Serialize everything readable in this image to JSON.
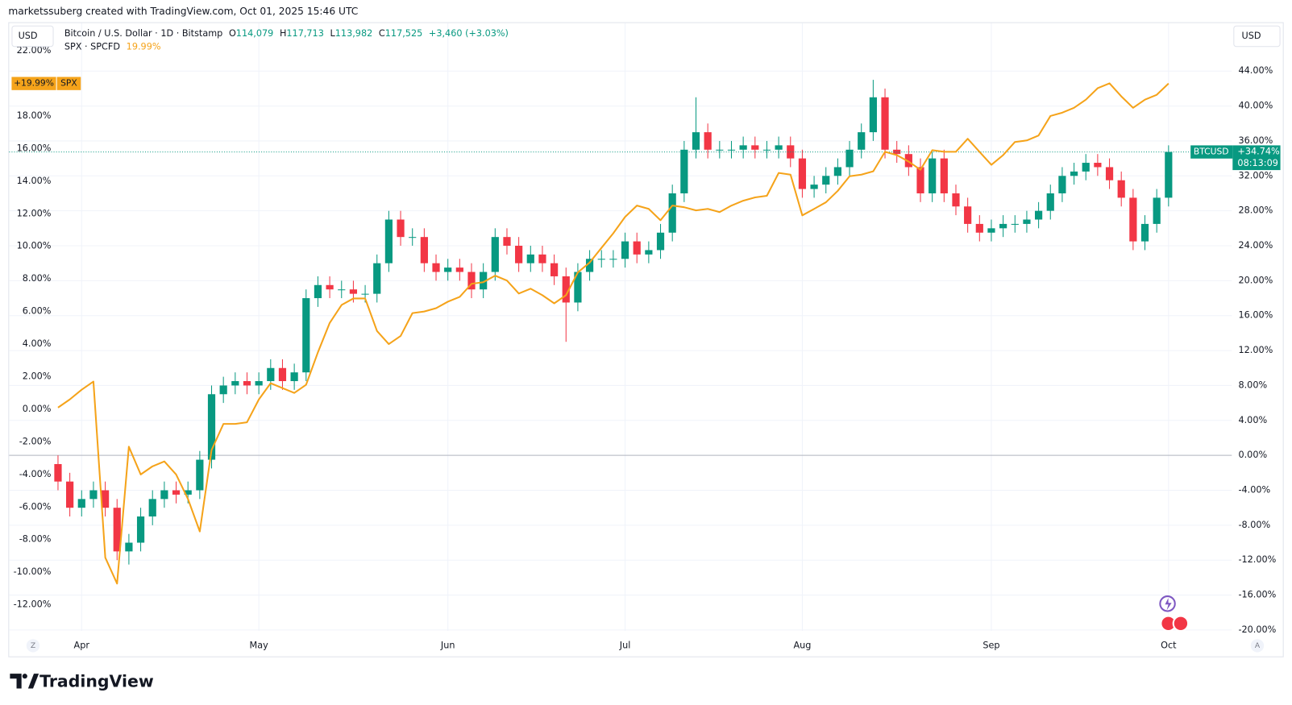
{
  "header": {
    "attribution": "marketssuberg created with TradingView.com, Oct 01, 2025 15:46 UTC"
  },
  "chart_data": {
    "type": "candlestick",
    "categories": [
      null,
      null,
      "Apr",
      null,
      null,
      null,
      null,
      null,
      null,
      null,
      null,
      null,
      null,
      null,
      null,
      null,
      null,
      "May",
      null,
      null,
      null,
      null,
      null,
      null,
      null,
      null,
      null,
      null,
      null,
      null,
      null,
      null,
      null,
      "Jun",
      null,
      null,
      null,
      null,
      null,
      null,
      null,
      null,
      null,
      null,
      null,
      null,
      null,
      null,
      "Jul",
      null,
      null,
      null,
      null,
      null,
      null,
      null,
      null,
      null,
      null,
      null,
      null,
      null,
      null,
      "Aug",
      null,
      null,
      null,
      null,
      null,
      null,
      null,
      null,
      null,
      null,
      null,
      null,
      null,
      null,
      null,
      "Sep",
      null,
      null,
      null,
      null,
      null,
      null,
      null,
      null,
      null,
      null,
      null,
      null,
      null,
      null,
      "Oct"
    ],
    "series": [
      {
        "name": "BTCUSD",
        "type": "candlestick",
        "axis": "y2",
        "up_color": "#089981",
        "down_color": "#f23645",
        "open": [
          -1,
          -3,
          -6,
          -5,
          -4,
          -6,
          -11,
          -10,
          -7,
          -5,
          -4,
          -4.5,
          -4,
          -0.5,
          7,
          8,
          8.5,
          8,
          8.5,
          10,
          8.5,
          9.5,
          18,
          19.5,
          19,
          19,
          18.5,
          18.5,
          22,
          27,
          25,
          25,
          22,
          21,
          21.5,
          21,
          19,
          21,
          25,
          24,
          22,
          23,
          22,
          20.5,
          17.5,
          21,
          22.5,
          22.5,
          22.5,
          24.5,
          23,
          23.5,
          25.5,
          30,
          35,
          37,
          35,
          35,
          35,
          35.5,
          35,
          35,
          35.5,
          34,
          30.5,
          31,
          32,
          33,
          35,
          37,
          41,
          35,
          34.5,
          33,
          30,
          34,
          30,
          28.5,
          26.5,
          25.5,
          26,
          26.5,
          26.5,
          27,
          28,
          30,
          32,
          32.5,
          33.5,
          33,
          31.5,
          29.5,
          24.5,
          26.5,
          29.5
        ],
        "high": [
          0,
          -2,
          -4,
          -3,
          -3,
          -5,
          -9,
          -6,
          -4,
          -3,
          -3,
          -3,
          0.5,
          8,
          9,
          9.5,
          9.5,
          9.5,
          11,
          11,
          10.5,
          19,
          20.5,
          20.5,
          20,
          20,
          19.5,
          23,
          28,
          28,
          26,
          26,
          23,
          22.5,
          22.5,
          22,
          22,
          26,
          26,
          25,
          24,
          24,
          23,
          21.5,
          22,
          23.5,
          23.5,
          23.5,
          25.5,
          25.5,
          24.5,
          26.5,
          31,
          36,
          41,
          38,
          36,
          36,
          36.5,
          36.5,
          36,
          36.5,
          36.5,
          35,
          32,
          33,
          34,
          36,
          38,
          43,
          42,
          36,
          35.5,
          34,
          35,
          35,
          31,
          29.5,
          27.5,
          27,
          27.5,
          27.5,
          28,
          29,
          31,
          33,
          33.5,
          34.5,
          34.5,
          34,
          32.5,
          30.5,
          27.5,
          30.5,
          35.5
        ],
        "low": [
          -4,
          -7,
          -7,
          -6,
          -7,
          -12,
          -12.5,
          -11,
          -8,
          -6,
          -5.5,
          -5.5,
          -5,
          -1.5,
          6,
          7,
          7,
          7,
          7.5,
          7.5,
          7.5,
          8.5,
          17,
          18,
          18,
          17.5,
          17.5,
          17.5,
          21,
          24,
          24,
          21,
          20,
          20,
          20,
          18,
          18,
          20,
          23,
          21,
          21,
          21,
          19.5,
          13,
          16.5,
          20,
          21.5,
          21.5,
          21.5,
          22,
          22,
          22.5,
          24.5,
          29,
          34,
          34,
          34,
          34,
          34,
          34,
          34,
          34,
          33,
          29.5,
          29.5,
          30,
          31,
          32,
          34,
          36,
          34,
          33.5,
          32,
          29,
          29,
          29,
          27.5,
          25.5,
          24.5,
          24.5,
          25,
          25.5,
          25.5,
          26,
          27,
          29,
          31,
          31.5,
          32,
          30.5,
          28.5,
          23.5,
          23.5,
          25.5,
          28.5
        ],
        "close": [
          -3,
          -6,
          -5,
          -4,
          -6,
          -11,
          -10,
          -7,
          -5,
          -4,
          -4.5,
          -4,
          -0.5,
          7,
          8,
          8.5,
          8,
          8.5,
          10,
          8.5,
          9.5,
          18,
          19.5,
          19,
          19,
          18.5,
          18.5,
          22,
          27,
          25,
          25,
          22,
          21,
          21.5,
          21,
          19,
          21,
          25,
          24,
          22,
          23,
          22,
          20.5,
          17.5,
          21,
          22.5,
          22.5,
          22.5,
          24.5,
          23,
          23.5,
          25.5,
          30,
          35,
          37,
          35,
          35,
          35,
          35.5,
          35,
          35,
          35.5,
          34,
          30.5,
          31,
          32,
          33,
          35,
          37,
          41,
          35,
          34.5,
          33,
          30,
          34,
          30,
          28.5,
          26.5,
          25.5,
          26,
          26.5,
          26.5,
          27,
          28,
          30,
          32,
          32.5,
          33.5,
          33,
          31.5,
          29.5,
          24.5,
          26.5,
          29.5,
          34.74
        ],
        "last_label": "+34.74%",
        "countdown": "08:13:09"
      },
      {
        "name": "SPX",
        "type": "line",
        "axis": "y",
        "color": "#f5a31a",
        "values": [
          0.1,
          0.6,
          1.2,
          1.7,
          -9.1,
          -10.7,
          -2.3,
          -4,
          -3.5,
          -3.2,
          -4,
          -5.5,
          -7.5,
          -2.5,
          -0.9,
          -0.9,
          -0.8,
          0.6,
          1.6,
          1.3,
          1,
          1.5,
          3.5,
          5.3,
          6.4,
          6.8,
          6.8,
          4.8,
          4,
          4.5,
          5.9,
          6,
          6.2,
          6.6,
          6.9,
          7.7,
          7.8,
          8.2,
          7.9,
          7.1,
          7.4,
          7,
          6.5,
          7,
          8.4,
          9,
          9.9,
          10.8,
          11.8,
          12.5,
          12.3,
          11.6,
          12.5,
          12.4,
          12.2,
          12.3,
          12.1,
          12.5,
          12.8,
          13,
          13.1,
          14.5,
          14.4,
          11.9,
          12.3,
          12.7,
          13.4,
          14.3,
          14.4,
          14.6,
          15.8,
          15.6,
          15.2,
          14.7,
          15.9,
          15.8,
          15.8,
          16.6,
          15.8,
          15,
          15.6,
          16.4,
          16.5,
          16.8,
          18,
          18.2,
          18.5,
          19,
          19.7,
          20,
          19.2,
          18.5,
          19,
          19.3,
          19.99
        ],
        "last_label": "+19.99%"
      }
    ],
    "ylim": [
      -13.6,
      23.7
    ],
    "yticks": [
      {
        "value": 22,
        "label": "22.00%"
      },
      {
        "value": 20,
        "label": "20.00%"
      },
      {
        "value": 18,
        "label": "18.00%"
      },
      {
        "value": 16,
        "label": "16.00%"
      },
      {
        "value": 14,
        "label": "14.00%"
      },
      {
        "value": 12,
        "label": "12.00%"
      },
      {
        "value": 10,
        "label": "10.00%"
      },
      {
        "value": 8,
        "label": "8.00%"
      },
      {
        "value": 6,
        "label": "6.00%"
      },
      {
        "value": 4,
        "label": "4.00%"
      },
      {
        "value": 2,
        "label": "2.00%"
      },
      {
        "value": 0,
        "label": "0.00%"
      },
      {
        "value": -2,
        "label": "-2.00%"
      },
      {
        "value": -4,
        "label": "-4.00%"
      },
      {
        "value": -6,
        "label": "-6.00%"
      },
      {
        "value": -8,
        "label": "-8.00%"
      },
      {
        "value": -10,
        "label": "-10.00%"
      },
      {
        "value": -12,
        "label": "-12.00%"
      }
    ],
    "y2lim": [
      -20.1,
      49.5
    ],
    "y2ticks": [
      {
        "value": 44,
        "label": "44.00%"
      },
      {
        "value": 40,
        "label": "40.00%"
      },
      {
        "value": 36,
        "label": "36.00%"
      },
      {
        "value": 32,
        "label": "32.00%"
      },
      {
        "value": 28,
        "label": "28.00%"
      },
      {
        "value": 24,
        "label": "24.00%"
      },
      {
        "value": 20,
        "label": "20.00%"
      },
      {
        "value": 16,
        "label": "16.00%"
      },
      {
        "value": 12,
        "label": "12.00%"
      },
      {
        "value": 8,
        "label": "8.00%"
      },
      {
        "value": 4,
        "label": "4.00%"
      },
      {
        "value": 0,
        "label": "0.00%"
      },
      {
        "value": -4,
        "label": "-4.00%"
      },
      {
        "value": -8,
        "label": "-8.00%"
      },
      {
        "value": -12,
        "label": "-12.00%"
      },
      {
        "value": -16,
        "label": "-16.00%"
      },
      {
        "value": -20,
        "label": "-20.00%"
      }
    ],
    "grid": true,
    "legend": {
      "title": "Bitcoin / U.S. Dollar · 1D · Bitstamp",
      "ohlc": [
        {
          "key": "O",
          "value": "114,079"
        },
        {
          "key": "H",
          "value": "117,713"
        },
        {
          "key": "L",
          "value": "113,982"
        },
        {
          "key": "C",
          "value": "117,525"
        }
      ],
      "change": "+3,460 (+3.03%)",
      "compare_title": "SPX · SPCFD",
      "compare_value": "19.99%"
    },
    "currency_left": "USD",
    "currency_right": "USD",
    "buttons": [
      "Z",
      "A"
    ]
  },
  "footer": {
    "logo": "TradingView"
  }
}
